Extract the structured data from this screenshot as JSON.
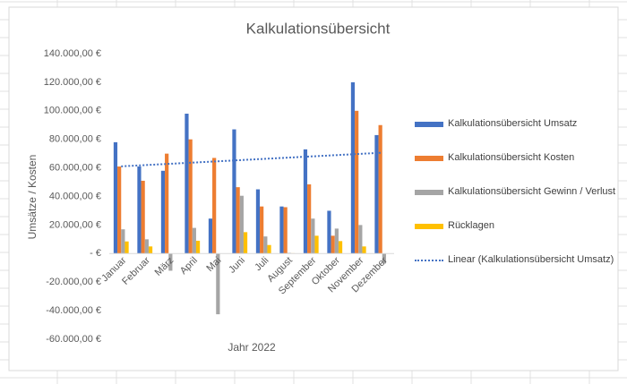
{
  "chart_data": {
    "type": "bar",
    "title": "Kalkulationsübersicht",
    "x_label": "Jahr 2022",
    "y_label": "Umsätze / Kosten",
    "categories": [
      "Januar",
      "Februar",
      "März",
      "April",
      "Mai",
      "Juni",
      "Juli",
      "August",
      "September",
      "Oktober",
      "November",
      "Dezember"
    ],
    "series": [
      {
        "name": "Kalkulationsübersicht Umsatz",
        "color": "#4472c4",
        "values": [
          78000,
          61000,
          58000,
          98000,
          24500,
          87000,
          45000,
          33000,
          73000,
          30000,
          120000,
          83000
        ]
      },
      {
        "name": "Kalkulationsübersicht Kosten",
        "color": "#ed7d31",
        "values": [
          61000,
          51000,
          70000,
          80000,
          67000,
          46500,
          33000,
          32500,
          48500,
          12500,
          100000,
          90000
        ]
      },
      {
        "name": "Kalkulationsübersicht Gewinn / Verlust",
        "color": "#a5a5a5",
        "values": [
          17000,
          10000,
          -12000,
          18000,
          -42500,
          40500,
          12000,
          500,
          24500,
          17500,
          20000,
          -7000
        ]
      },
      {
        "name": "Rücklagen",
        "color": "#ffc000",
        "values": [
          8500,
          5000,
          0,
          9000,
          0,
          15000,
          6000,
          250,
          12500,
          8750,
          5000,
          0
        ]
      }
    ],
    "trendline": {
      "name": "Linear (Kalkulationsübersicht Umsatz)",
      "series": 0,
      "kind": "linear",
      "color": "#4472c4",
      "style": "dotted"
    },
    "ylim": [
      -60000,
      140000
    ],
    "yticks": [
      {
        "value": -60000,
        "label": "-60.000,00 €"
      },
      {
        "value": -40000,
        "label": "-40.000,00 €"
      },
      {
        "value": -20000,
        "label": "-20.000,00 €"
      },
      {
        "value": 0,
        "label": "-   €"
      },
      {
        "value": 20000,
        "label": "20.000,00 €"
      },
      {
        "value": 40000,
        "label": "40.000,00 €"
      },
      {
        "value": 60000,
        "label": "60.000,00 €"
      },
      {
        "value": 80000,
        "label": "80.000,00 €"
      },
      {
        "value": 100000,
        "label": "100.000,00 €"
      },
      {
        "value": 120000,
        "label": "120.000,00 €"
      },
      {
        "value": 140000,
        "label": "140.000,00 €"
      }
    ],
    "grid": false,
    "legend": "right"
  }
}
